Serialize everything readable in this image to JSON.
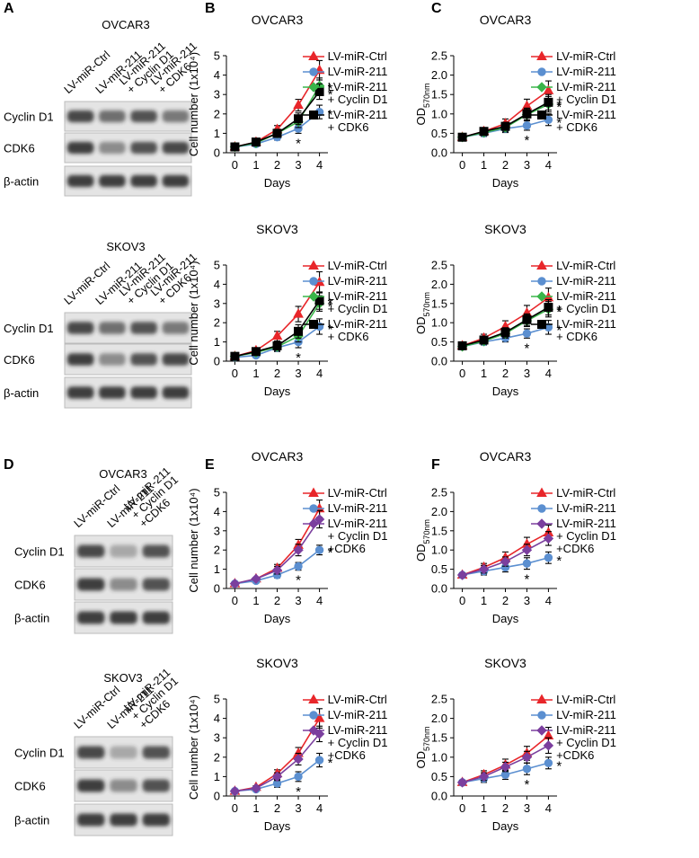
{
  "panel_labels": [
    "A",
    "B",
    "C",
    "D",
    "E",
    "F"
  ],
  "blots": [
    {
      "title": "OVCAR3",
      "lanes": [
        "LV-miR-Ctrl",
        "LV-miR-211",
        "LV-miR-211\n+ Cyclin D1",
        "LV-miR-211\n+ CDK6"
      ],
      "rows": [
        "Cyclin D1",
        "CDK6",
        "β-actin"
      ]
    },
    {
      "title": "SKOV3",
      "lanes": [
        "LV-miR-Ctrl",
        "LV-miR-211",
        "LV-miR-211\n+ Cyclin D1",
        "LV-miR-211\n+ CDK6"
      ],
      "rows": [
        "Cyclin D1",
        "CDK6",
        "β-actin"
      ]
    },
    {
      "title": "OVCAR3",
      "lanes": [
        "LV-miR-Ctrl",
        "LV-miR-211",
        "LV-miR-211\n+ Cyclin D1\n+CDK6"
      ],
      "rows": [
        "Cyclin D1",
        "CDK6",
        "β-actin"
      ]
    },
    {
      "title": "SKOV3",
      "lanes": [
        "LV-miR-Ctrl",
        "LV-miR-211",
        "LV-miR-211\n+ Cyclin D1\n+CDK6"
      ],
      "rows": [
        "Cyclin D1",
        "CDK6",
        "β-actin"
      ]
    }
  ],
  "chart_data": [
    {
      "type": "line",
      "title": "OVCAR3",
      "x_label": "Days",
      "y_label": "Cell number (1x10⁴)",
      "x": [
        0,
        1,
        2,
        3,
        4
      ],
      "xlim": [
        -0.4,
        4.4
      ],
      "xticks": [
        0,
        1,
        2,
        3,
        4
      ],
      "ylim": [
        0,
        5
      ],
      "yticks": [
        0,
        1,
        2,
        3,
        4,
        5
      ],
      "series": [
        {
          "name": "LV-miR-Ctrl",
          "color": "#e8262a",
          "marker": "triangle",
          "values": [
            0.3,
            0.55,
            1.2,
            2.45,
            4.25
          ],
          "errors": [
            0.05,
            0.1,
            0.2,
            0.3,
            0.5
          ],
          "annotations": [
            null,
            null,
            null,
            null,
            null
          ]
        },
        {
          "name": "LV-miR-211",
          "color": "#5b8fd0",
          "marker": "circle",
          "values": [
            0.3,
            0.45,
            0.8,
            1.25,
            2.1
          ],
          "errors": [
            0.05,
            0.1,
            0.15,
            0.25,
            0.35
          ],
          "annotations": [
            null,
            null,
            null,
            "*",
            "*"
          ]
        },
        {
          "name": "LV-miR-211\n+ Cyclin D1",
          "color": "#3ab54a",
          "marker": "diamond",
          "values": [
            0.3,
            0.5,
            1.0,
            1.6,
            3.45
          ],
          "errors": [
            0.05,
            0.1,
            0.2,
            0.3,
            0.4
          ],
          "annotations": [
            null,
            null,
            null,
            null,
            "*"
          ]
        },
        {
          "name": "LV-miR-211\n+ CDK6",
          "color": "#000000",
          "marker": "square",
          "values": [
            0.3,
            0.55,
            1.0,
            1.75,
            3.15
          ],
          "errors": [
            0.05,
            0.1,
            0.2,
            0.3,
            0.4
          ],
          "annotations": [
            null,
            null,
            null,
            null,
            "*"
          ]
        }
      ]
    },
    {
      "type": "line",
      "title": "OVCAR3",
      "x_label": "Days",
      "y_label": "OD",
      "y_label_sub": "570nm",
      "x": [
        0,
        1,
        2,
        3,
        4
      ],
      "xlim": [
        -0.4,
        4.4
      ],
      "xticks": [
        0,
        1,
        2,
        3,
        4
      ],
      "ylim": [
        0,
        2.5
      ],
      "yticks": [
        {
          "value": 0,
          "label": "0.0"
        },
        0.5,
        {
          "value": 1,
          "label": "1.0"
        },
        1.5,
        {
          "value": 2,
          "label": "2.0"
        },
        2.5
      ],
      "series": [
        {
          "name": "LV-miR-Ctrl",
          "color": "#e8262a",
          "marker": "triangle",
          "values": [
            0.4,
            0.55,
            0.75,
            1.2,
            1.6
          ],
          "errors": [
            0.05,
            0.08,
            0.12,
            0.18,
            0.25
          ],
          "annotations": [
            null,
            null,
            null,
            null,
            null
          ]
        },
        {
          "name": "LV-miR-211",
          "color": "#5b8fd0",
          "marker": "circle",
          "values": [
            0.4,
            0.5,
            0.62,
            0.7,
            0.85
          ],
          "errors": [
            0.05,
            0.08,
            0.1,
            0.12,
            0.15
          ],
          "annotations": [
            null,
            null,
            null,
            "*",
            "*"
          ]
        },
        {
          "name": "LV-miR-211\n+ Cyclin D1",
          "color": "#3ab54a",
          "marker": "diamond",
          "values": [
            0.4,
            0.52,
            0.65,
            0.98,
            1.25
          ],
          "errors": [
            0.05,
            0.08,
            0.1,
            0.15,
            0.2
          ],
          "annotations": [
            null,
            null,
            null,
            null,
            "*"
          ]
        },
        {
          "name": "LV-miR-211\n+ CDK6",
          "color": "#000000",
          "marker": "square",
          "values": [
            0.4,
            0.55,
            0.68,
            1.0,
            1.3
          ],
          "errors": [
            0.05,
            0.08,
            0.1,
            0.15,
            0.2
          ],
          "annotations": [
            null,
            null,
            null,
            null,
            "*"
          ]
        }
      ]
    },
    {
      "type": "line",
      "title": "SKOV3",
      "x_label": "Days",
      "y_label": "Cell number (1x10⁴)",
      "x": [
        0,
        1,
        2,
        3,
        4
      ],
      "xlim": [
        -0.4,
        4.4
      ],
      "xticks": [
        0,
        1,
        2,
        3,
        4
      ],
      "ylim": [
        0,
        5
      ],
      "yticks": [
        0,
        1,
        2,
        3,
        4,
        5
      ],
      "series": [
        {
          "name": "LV-miR-Ctrl",
          "color": "#e8262a",
          "marker": "triangle",
          "values": [
            0.25,
            0.55,
            1.3,
            2.45,
            4.1
          ],
          "errors": [
            0.05,
            0.1,
            0.25,
            0.4,
            0.55
          ],
          "annotations": [
            null,
            null,
            null,
            null,
            null
          ]
        },
        {
          "name": "LV-miR-211",
          "color": "#5b8fd0",
          "marker": "circle",
          "values": [
            0.2,
            0.3,
            0.7,
            1.0,
            1.8
          ],
          "errors": [
            0.05,
            0.1,
            0.2,
            0.3,
            0.4
          ],
          "annotations": [
            null,
            null,
            null,
            "*",
            "*"
          ]
        },
        {
          "name": "LV-miR-211\n+ Cyclin D1",
          "color": "#3ab54a",
          "marker": "diamond",
          "values": [
            0.25,
            0.45,
            0.75,
            1.3,
            3.0
          ],
          "errors": [
            0.05,
            0.1,
            0.2,
            0.3,
            0.4
          ],
          "annotations": [
            null,
            null,
            null,
            null,
            "*"
          ]
        },
        {
          "name": "LV-miR-211\n+ CDK6",
          "color": "#000000",
          "marker": "square",
          "values": [
            0.25,
            0.5,
            0.8,
            1.55,
            3.15
          ],
          "errors": [
            0.05,
            0.1,
            0.2,
            0.35,
            0.45
          ],
          "annotations": [
            null,
            null,
            null,
            null,
            "*"
          ]
        }
      ]
    },
    {
      "type": "line",
      "title": "SKOV3",
      "x_label": "Days",
      "y_label": "OD",
      "y_label_sub": "570nm",
      "x": [
        0,
        1,
        2,
        3,
        4
      ],
      "xlim": [
        -0.4,
        4.4
      ],
      "xticks": [
        0,
        1,
        2,
        3,
        4
      ],
      "ylim": [
        0,
        2.5
      ],
      "yticks": [
        {
          "value": 0,
          "label": "0.0"
        },
        0.5,
        {
          "value": 1,
          "label": "1.0"
        },
        1.5,
        {
          "value": 2,
          "label": "2.0"
        },
        2.5
      ],
      "series": [
        {
          "name": "LV-miR-Ctrl",
          "color": "#e8262a",
          "marker": "triangle",
          "values": [
            0.4,
            0.6,
            0.9,
            1.25,
            1.65
          ],
          "errors": [
            0.05,
            0.1,
            0.15,
            0.2,
            0.25
          ],
          "annotations": [
            null,
            null,
            null,
            null,
            null
          ]
        },
        {
          "name": "LV-miR-211",
          "color": "#5b8fd0",
          "marker": "circle",
          "values": [
            0.38,
            0.5,
            0.6,
            0.72,
            0.88
          ],
          "errors": [
            0.05,
            0.08,
            0.1,
            0.12,
            0.18
          ],
          "annotations": [
            null,
            null,
            null,
            "*",
            "*"
          ]
        },
        {
          "name": "LV-miR-211\n+ Cyclin D1",
          "color": "#3ab54a",
          "marker": "diamond",
          "values": [
            0.38,
            0.52,
            0.72,
            1.05,
            1.35
          ],
          "errors": [
            0.05,
            0.08,
            0.12,
            0.15,
            0.2
          ],
          "annotations": [
            null,
            null,
            null,
            null,
            "*"
          ]
        },
        {
          "name": "LV-miR-211\n+ CDK6",
          "color": "#000000",
          "marker": "square",
          "values": [
            0.4,
            0.55,
            0.75,
            1.08,
            1.4
          ],
          "errors": [
            0.05,
            0.08,
            0.12,
            0.15,
            0.2
          ],
          "annotations": [
            null,
            null,
            null,
            null,
            "*"
          ]
        }
      ]
    },
    {
      "type": "line",
      "title": "OVCAR3",
      "x_label": "Days",
      "y_label": "Cell number (1x10⁴)",
      "x": [
        0,
        1,
        2,
        3,
        4
      ],
      "xlim": [
        -0.4,
        4.4
      ],
      "xticks": [
        0,
        1,
        2,
        3,
        4
      ],
      "ylim": [
        0,
        5
      ],
      "yticks": [
        0,
        1,
        2,
        3,
        4,
        5
      ],
      "series": [
        {
          "name": "LV-miR-Ctrl",
          "color": "#e8262a",
          "marker": "triangle",
          "values": [
            0.25,
            0.5,
            1.05,
            2.25,
            4.15
          ],
          "errors": [
            0.05,
            0.08,
            0.2,
            0.3,
            0.45
          ],
          "annotations": [
            null,
            null,
            null,
            null,
            null
          ]
        },
        {
          "name": "LV-miR-211",
          "color": "#5b8fd0",
          "marker": "circle",
          "values": [
            0.25,
            0.4,
            0.7,
            1.15,
            2.0
          ],
          "errors": [
            0.05,
            0.08,
            0.15,
            0.2,
            0.25
          ],
          "annotations": [
            null,
            null,
            null,
            "*",
            "*"
          ]
        },
        {
          "name": "LV-miR-211\n+ Cyclin D1\n+CDK6",
          "color": "#7b3f9e",
          "marker": "diamond",
          "values": [
            0.25,
            0.5,
            0.95,
            2.0,
            3.6
          ],
          "errors": [
            0.05,
            0.08,
            0.2,
            0.3,
            0.45
          ],
          "annotations": [
            null,
            null,
            null,
            null,
            null
          ]
        }
      ]
    },
    {
      "type": "line",
      "title": "OVCAR3",
      "x_label": "Days",
      "y_label": "OD",
      "y_label_sub": "570nm",
      "x": [
        0,
        1,
        2,
        3,
        4
      ],
      "xlim": [
        -0.4,
        4.4
      ],
      "xticks": [
        0,
        1,
        2,
        3,
        4
      ],
      "ylim": [
        0,
        2.5
      ],
      "yticks": [
        {
          "value": 0,
          "label": "0.0"
        },
        0.5,
        {
          "value": 1,
          "label": "1.0"
        },
        1.5,
        {
          "value": 2,
          "label": "2.0"
        },
        2.5
      ],
      "series": [
        {
          "name": "LV-miR-Ctrl",
          "color": "#e8262a",
          "marker": "triangle",
          "values": [
            0.35,
            0.55,
            0.8,
            1.15,
            1.45
          ],
          "errors": [
            0.05,
            0.1,
            0.15,
            0.18,
            0.2
          ],
          "annotations": [
            null,
            null,
            null,
            null,
            null
          ]
        },
        {
          "name": "LV-miR-211",
          "color": "#5b8fd0",
          "marker": "circle",
          "values": [
            0.35,
            0.45,
            0.55,
            0.65,
            0.8
          ],
          "errors": [
            0.05,
            0.1,
            0.12,
            0.15,
            0.15
          ],
          "annotations": [
            null,
            null,
            null,
            "*",
            "*"
          ]
        },
        {
          "name": "LV-miR-211\n+ Cyclin D1\n+CDK6",
          "color": "#7b3f9e",
          "marker": "diamond",
          "values": [
            0.35,
            0.5,
            0.7,
            1.0,
            1.3
          ],
          "errors": [
            0.05,
            0.1,
            0.12,
            0.15,
            0.18
          ],
          "annotations": [
            null,
            null,
            null,
            null,
            null
          ]
        }
      ]
    },
    {
      "type": "line",
      "title": "SKOV3",
      "x_label": "Days",
      "y_label": "Cell number (1x10⁴)",
      "x": [
        0,
        1,
        2,
        3,
        4
      ],
      "xlim": [
        -0.4,
        4.4
      ],
      "xticks": [
        0,
        1,
        2,
        3,
        4
      ],
      "ylim": [
        0,
        5
      ],
      "yticks": [
        0,
        1,
        2,
        3,
        4,
        5
      ],
      "series": [
        {
          "name": "LV-miR-Ctrl",
          "color": "#e8262a",
          "marker": "triangle",
          "values": [
            0.25,
            0.45,
            1.15,
            2.2,
            4.0
          ],
          "errors": [
            0.05,
            0.08,
            0.2,
            0.3,
            0.5
          ],
          "annotations": [
            null,
            null,
            null,
            null,
            null
          ]
        },
        {
          "name": "LV-miR-211",
          "color": "#5b8fd0",
          "marker": "circle",
          "values": [
            0.25,
            0.35,
            0.65,
            1.0,
            1.85
          ],
          "errors": [
            0.05,
            0.08,
            0.2,
            0.25,
            0.35
          ],
          "annotations": [
            null,
            null,
            null,
            "*",
            "*"
          ]
        },
        {
          "name": "LV-miR-211\n+ Cyclin D1\n+CDK6",
          "color": "#7b3f9e",
          "marker": "diamond",
          "values": [
            0.25,
            0.4,
            1.0,
            1.9,
            3.2
          ],
          "errors": [
            0.05,
            0.08,
            0.2,
            0.3,
            0.4
          ],
          "annotations": [
            null,
            null,
            null,
            null,
            null
          ]
        }
      ]
    },
    {
      "type": "line",
      "title": "SKOV3",
      "x_label": "Days",
      "y_label": "OD",
      "y_label_sub": "570nm",
      "x": [
        0,
        1,
        2,
        3,
        4
      ],
      "xlim": [
        -0.4,
        4.4
      ],
      "xticks": [
        0,
        1,
        2,
        3,
        4
      ],
      "ylim": [
        0,
        2.5
      ],
      "yticks": [
        {
          "value": 0,
          "label": "0.0"
        },
        0.5,
        {
          "value": 1,
          "label": "1.0"
        },
        1.5,
        {
          "value": 2,
          "label": "2.0"
        },
        2.5
      ],
      "series": [
        {
          "name": "LV-miR-Ctrl",
          "color": "#e8262a",
          "marker": "triangle",
          "values": [
            0.35,
            0.55,
            0.8,
            1.1,
            1.55
          ],
          "errors": [
            0.05,
            0.1,
            0.15,
            0.18,
            0.22
          ],
          "annotations": [
            null,
            null,
            null,
            null,
            null
          ]
        },
        {
          "name": "LV-miR-211",
          "color": "#5b8fd0",
          "marker": "circle",
          "values": [
            0.35,
            0.45,
            0.55,
            0.7,
            0.85
          ],
          "errors": [
            0.05,
            0.1,
            0.12,
            0.15,
            0.15
          ],
          "annotations": [
            null,
            null,
            null,
            "*",
            "*"
          ]
        },
        {
          "name": "LV-miR-211\n+ Cyclin D1\n+CDK6",
          "color": "#7b3f9e",
          "marker": "diamond",
          "values": [
            0.35,
            0.5,
            0.75,
            1.0,
            1.3
          ],
          "errors": [
            0.05,
            0.1,
            0.12,
            0.15,
            0.2
          ],
          "annotations": [
            null,
            null,
            null,
            null,
            null
          ]
        }
      ]
    }
  ]
}
